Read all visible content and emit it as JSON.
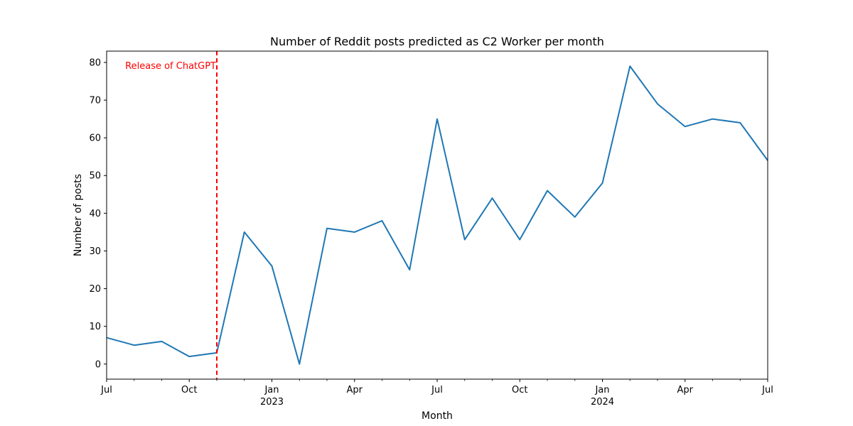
{
  "chart_data": {
    "type": "line",
    "title": "Number of Reddit posts predicted as C2 Worker per month",
    "xlabel": "Month",
    "ylabel": "Number of posts",
    "x": [
      "2022-07",
      "2022-08",
      "2022-09",
      "2022-10",
      "2022-11",
      "2022-12",
      "2023-01",
      "2023-02",
      "2023-03",
      "2023-04",
      "2023-05",
      "2023-06",
      "2023-07",
      "2023-08",
      "2023-09",
      "2023-10",
      "2023-11",
      "2023-12",
      "2024-01",
      "2024-02",
      "2024-03",
      "2024-04",
      "2024-05",
      "2024-06",
      "2024-07"
    ],
    "series": [
      {
        "name": "",
        "color": "#1f77b4",
        "values": [
          7,
          5,
          6,
          2,
          3,
          35,
          26,
          0,
          36,
          35,
          38,
          25,
          65,
          33,
          44,
          33,
          46,
          39,
          48,
          79,
          69,
          63,
          65,
          64,
          54
        ]
      }
    ],
    "ylim": [
      -4,
      83
    ],
    "yticks": [
      0,
      10,
      20,
      30,
      40,
      50,
      60,
      70,
      80
    ],
    "xticks": [
      {
        "date": "2022-07",
        "label": "Jul",
        "sublabel": ""
      },
      {
        "date": "2022-10",
        "label": "Oct",
        "sublabel": ""
      },
      {
        "date": "2023-01",
        "label": "Jan",
        "sublabel": "2023"
      },
      {
        "date": "2023-04",
        "label": "Apr",
        "sublabel": ""
      },
      {
        "date": "2023-07",
        "label": "Jul",
        "sublabel": ""
      },
      {
        "date": "2023-10",
        "label": "Oct",
        "sublabel": ""
      },
      {
        "date": "2024-01",
        "label": "Jan",
        "sublabel": "2024"
      },
      {
        "date": "2024-04",
        "label": "Apr",
        "sublabel": ""
      },
      {
        "date": "2024-07",
        "label": "Jul",
        "sublabel": ""
      }
    ],
    "annotation": {
      "text": "Release of ChatGPT",
      "date": "2022-11",
      "color": "#ff0000",
      "style": "dashed"
    },
    "grid": false,
    "legend": "none"
  }
}
